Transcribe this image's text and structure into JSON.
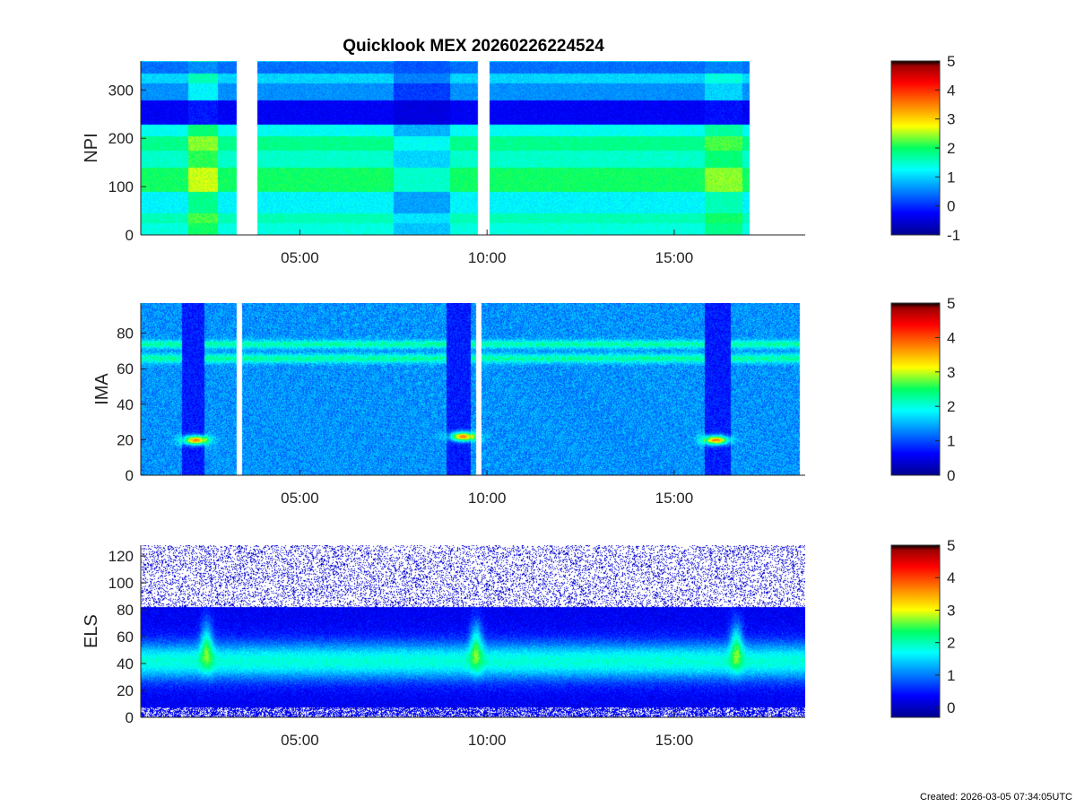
{
  "title": "Quicklook MEX 20260226224524",
  "footer": "Created: 2026-03-05 07:34:05UTC",
  "chart_data": [
    {
      "type": "heatmap",
      "id": "npi",
      "ylabel": "NPI",
      "ylim": [
        0,
        360
      ],
      "yticks": [
        0,
        100,
        200,
        300
      ],
      "xlim_hours": [
        0.75,
        18.5
      ],
      "xticks": [
        {
          "label": "05:00",
          "hour": 5
        },
        {
          "label": "10:00",
          "hour": 10
        },
        {
          "label": "15:00",
          "hour": 15
        }
      ],
      "data_end_hour": 17.0,
      "gaps_hours": [
        [
          3.3,
          3.85
        ],
        [
          9.75,
          10.05
        ]
      ],
      "colorbar": {
        "min": -1,
        "max": 5,
        "ticks": [
          -1,
          0,
          1,
          2,
          3,
          4,
          5
        ]
      },
      "description_bands": [
        {
          "y": [
            0,
            25
          ],
          "level": 1.4
        },
        {
          "y": [
            25,
            45
          ],
          "level": 1.6
        },
        {
          "y": [
            45,
            90
          ],
          "level": 1.2
        },
        {
          "y": [
            90,
            140
          ],
          "level": 2.0
        },
        {
          "y": [
            140,
            175
          ],
          "level": 1.5
        },
        {
          "y": [
            175,
            205
          ],
          "level": 1.8
        },
        {
          "y": [
            205,
            230
          ],
          "level": 1.3
        },
        {
          "y": [
            230,
            280
          ],
          "level": -0.3
        },
        {
          "y": [
            280,
            315
          ],
          "level": 0.6
        },
        {
          "y": [
            315,
            335
          ],
          "level": 1.0
        },
        {
          "y": [
            335,
            360
          ],
          "level": 0.4
        }
      ]
    },
    {
      "type": "heatmap",
      "id": "ima",
      "ylabel": "IMA",
      "ylim": [
        0,
        97
      ],
      "yticks": [
        0,
        20,
        40,
        60,
        80
      ],
      "xlim_hours": [
        0.75,
        18.5
      ],
      "xticks": [
        {
          "label": "05:00",
          "hour": 5
        },
        {
          "label": "10:00",
          "hour": 10
        },
        {
          "label": "15:00",
          "hour": 15
        }
      ],
      "data_end_hour": 18.35,
      "gaps_hours": [
        [
          3.3,
          3.45
        ],
        [
          9.7,
          9.85
        ]
      ],
      "colorbar": {
        "min": 0,
        "max": 5,
        "ticks": [
          0,
          1,
          2,
          3,
          4,
          5
        ]
      },
      "dips_hours": [
        [
          1.85,
          2.45
        ],
        [
          8.9,
          9.55
        ],
        [
          15.8,
          16.5
        ]
      ],
      "hot_spots": [
        {
          "hour": 2.2,
          "y": 20
        },
        {
          "hour": 9.35,
          "y": 22
        },
        {
          "hour": 16.1,
          "y": 20
        }
      ]
    },
    {
      "type": "heatmap",
      "id": "els",
      "ylabel": "ELS",
      "ylim": [
        0,
        128
      ],
      "yticks": [
        0,
        20,
        40,
        60,
        80,
        100,
        120
      ],
      "xlim_hours": [
        0.75,
        18.5
      ],
      "xticks": [
        {
          "label": "05:00",
          "hour": 5
        },
        {
          "label": "10:00",
          "hour": 10
        },
        {
          "label": "15:00",
          "hour": 15
        }
      ],
      "data_end_hour": 18.5,
      "colorbar": {
        "min": -0.3,
        "max": 5,
        "ticks": [
          0,
          1,
          2,
          3,
          4,
          5
        ]
      },
      "bursts_hours": [
        2.5,
        9.7,
        16.65
      ]
    }
  ]
}
